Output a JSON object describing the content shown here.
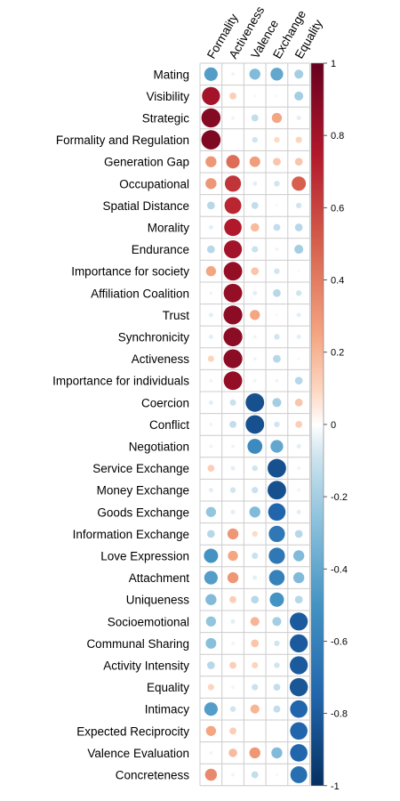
{
  "chart_data": {
    "type": "heatmap",
    "subtype": "correlation-circles",
    "columns": [
      "Formality",
      "Activeness",
      "Valence",
      "Exchange",
      "Equality"
    ],
    "rows": [
      "Mating",
      "Visibility",
      "Strategic",
      "Formality and Regulation",
      "Generation Gap",
      "Occupational",
      "Spatial Distance",
      "Morality",
      "Endurance",
      "Importance for society",
      "Affiliation Coalition",
      "Trust",
      "Synchronicity",
      "Activeness",
      "Importance for individuals",
      "Coercion",
      "Conflict",
      "Negotiation",
      "Service Exchange",
      "Money Exchange",
      "Goods Exchange",
      "Information Exchange",
      "Love Expression",
      "Attachment",
      "Uniqueness",
      "Socioemotional",
      "Communal Sharing",
      "Activity Intensity",
      "Equality",
      "Intimacy",
      "Expected Reciprocity",
      "Valence Evaluation",
      "Concreteness"
    ],
    "values": [
      [
        -0.45,
        -0.03,
        -0.3,
        -0.4,
        -0.2
      ],
      [
        0.8,
        0.12,
        -0.02,
        -0.02,
        -0.2
      ],
      [
        0.9,
        -0.03,
        -0.12,
        0.25,
        -0.05
      ],
      [
        0.92,
        0.0,
        -0.08,
        0.08,
        0.1
      ],
      [
        0.3,
        0.45,
        0.28,
        0.15,
        0.15
      ],
      [
        0.3,
        0.65,
        -0.05,
        -0.08,
        0.5
      ],
      [
        -0.15,
        0.7,
        -0.12,
        -0.02,
        -0.08
      ],
      [
        -0.05,
        0.75,
        0.18,
        -0.12,
        -0.15
      ],
      [
        -0.15,
        0.8,
        -0.1,
        -0.03,
        -0.2
      ],
      [
        0.25,
        0.85,
        0.15,
        -0.08,
        -0.02
      ],
      [
        -0.03,
        0.85,
        -0.05,
        -0.15,
        -0.08
      ],
      [
        -0.05,
        0.88,
        0.25,
        -0.02,
        -0.05
      ],
      [
        -0.05,
        0.88,
        -0.03,
        -0.08,
        -0.05
      ],
      [
        0.1,
        0.88,
        -0.03,
        -0.15,
        -0.02
      ],
      [
        -0.03,
        0.85,
        -0.03,
        -0.03,
        -0.15
      ],
      [
        -0.05,
        -0.1,
        -0.85,
        -0.2,
        0.15
      ],
      [
        -0.03,
        -0.12,
        -0.85,
        -0.08,
        0.12
      ],
      [
        -0.03,
        -0.03,
        -0.55,
        -0.4,
        -0.05
      ],
      [
        0.12,
        -0.05,
        -0.08,
        -0.85,
        -0.03
      ],
      [
        -0.05,
        -0.08,
        -0.1,
        -0.85,
        0.03
      ],
      [
        -0.25,
        -0.05,
        -0.3,
        -0.75,
        -0.05
      ],
      [
        -0.15,
        0.3,
        0.08,
        -0.65,
        -0.15
      ],
      [
        -0.5,
        0.25,
        -0.1,
        -0.65,
        -0.3
      ],
      [
        -0.45,
        0.3,
        -0.05,
        -0.6,
        -0.3
      ],
      [
        -0.3,
        0.12,
        -0.15,
        -0.5,
        -0.15
      ],
      [
        -0.25,
        -0.05,
        0.2,
        -0.2,
        -0.8
      ],
      [
        -0.28,
        -0.03,
        0.15,
        -0.08,
        -0.8
      ],
      [
        -0.15,
        0.12,
        0.1,
        -0.08,
        -0.8
      ],
      [
        0.1,
        0.03,
        -0.1,
        -0.12,
        -0.82
      ],
      [
        -0.45,
        -0.08,
        0.2,
        -0.12,
        -0.75
      ],
      [
        0.25,
        0.12,
        0.0,
        0.0,
        -0.75
      ],
      [
        -0.03,
        0.18,
        0.3,
        -0.3,
        -0.75
      ],
      [
        0.35,
        -0.03,
        -0.12,
        -0.02,
        -0.7
      ]
    ],
    "colorbar": {
      "range": [
        -1,
        1
      ],
      "ticks": [
        1,
        0.8,
        0.6,
        0.4,
        0.2,
        0,
        -0.2,
        -0.4,
        -0.6,
        -0.8,
        -1
      ],
      "tick_labels": [
        "1",
        "0.8",
        "0.6",
        "0.4",
        "0.2",
        "0",
        "-0.2",
        "-0.4",
        "-0.6",
        "-0.8",
        "-1"
      ],
      "placement": "right"
    },
    "colors": {
      "negative_end": "#053061",
      "neutral": "#ffffff",
      "positive_end": "#67001f",
      "grid": "#cccccc"
    },
    "grid": true
  }
}
